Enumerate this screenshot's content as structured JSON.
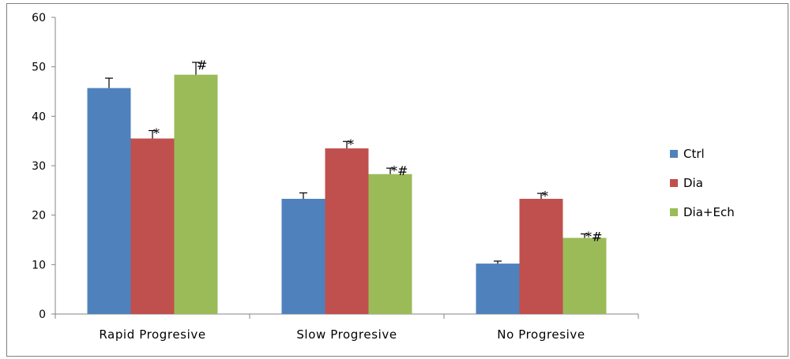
{
  "chart_data": {
    "type": "bar",
    "title": "",
    "xlabel": "",
    "ylabel": "",
    "ylim": [
      0,
      60
    ],
    "yticks": [
      0,
      10,
      20,
      30,
      40,
      50,
      60
    ],
    "grid": false,
    "legend_position": "right",
    "categories": [
      "Rapid Progresive",
      "Slow Progresive",
      "No Progresive"
    ],
    "series": [
      {
        "name": "Ctrl",
        "color": "#4f81bd",
        "values": [
          45.7,
          23.3,
          10.2
        ],
        "errors": [
          2.0,
          1.2,
          0.5
        ],
        "annotations": [
          "",
          "",
          ""
        ]
      },
      {
        "name": "Dia",
        "color": "#c0504d",
        "values": [
          35.5,
          33.5,
          23.3
        ],
        "errors": [
          1.6,
          1.4,
          1.1
        ],
        "annotations": [
          "*",
          "*",
          "*"
        ]
      },
      {
        "name": "Dia+Ech",
        "color": "#9bbb59",
        "values": [
          48.4,
          28.3,
          15.4
        ],
        "errors": [
          2.5,
          1.2,
          0.8
        ],
        "annotations": [
          "#",
          "*#",
          "*#"
        ]
      }
    ]
  }
}
